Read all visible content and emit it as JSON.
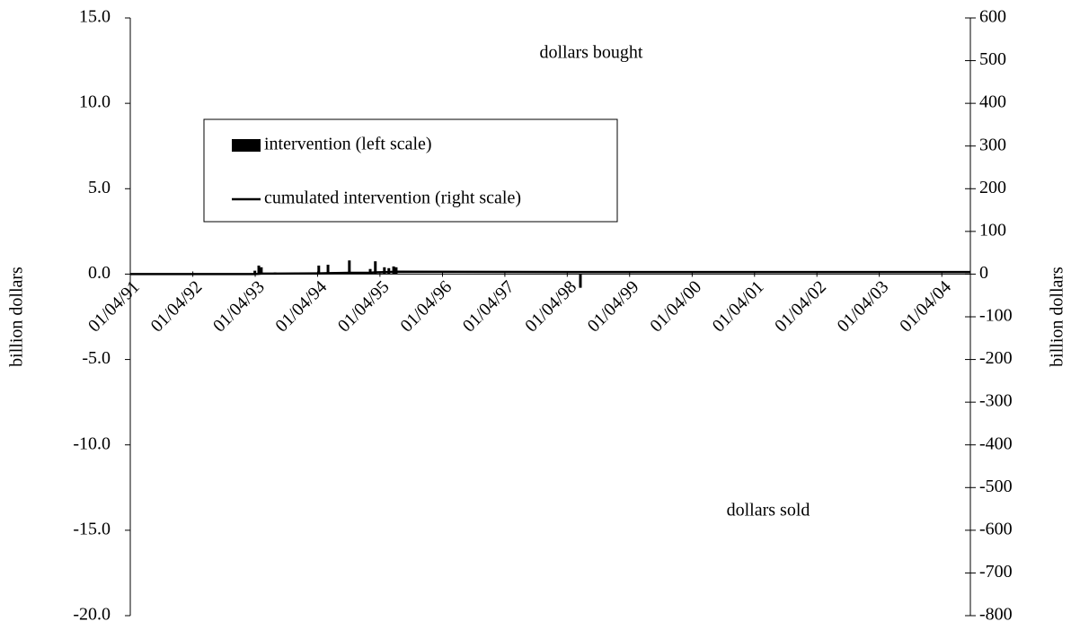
{
  "chart_data": {
    "type": "combo",
    "ylabel": "billion dollars",
    "y2label": "billion dollars",
    "annotations": [
      "dollars bought",
      "dollars sold"
    ],
    "xlim": [
      "01/04/91",
      "15/09/04"
    ],
    "xticks": [
      "01/04/91",
      "01/04/92",
      "01/04/93",
      "01/04/94",
      "01/04/95",
      "01/04/96",
      "01/04/97",
      "01/04/98",
      "01/04/99",
      "01/04/00",
      "01/04/01",
      "01/04/02",
      "01/04/03",
      "01/04/04"
    ],
    "ylim": [
      -20,
      15
    ],
    "yticks": [
      {
        "value": -20,
        "label": "-20.0"
      },
      {
        "value": -15,
        "label": "-15.0"
      },
      {
        "value": -10,
        "label": "-10.0"
      },
      {
        "value": -5,
        "label": "-5.0"
      },
      {
        "value": 0,
        "label": "0.0"
      },
      {
        "value": 5,
        "label": "5.0"
      },
      {
        "value": 10,
        "label": "10.0"
      },
      {
        "value": 15,
        "label": "15.0"
      }
    ],
    "y2lim": [
      -800,
      600
    ],
    "y2ticks": [
      -800,
      -700,
      -600,
      -500,
      -400,
      -300,
      -200,
      -100,
      0,
      100,
      200,
      300,
      400,
      500,
      600
    ],
    "legend": "upper-left",
    "series": [
      {
        "name": "intervention (left scale)",
        "type": "bar",
        "color": "#000000",
        "x": [
          "30/03/93",
          "22/04/93",
          "07/05/93",
          "26/07/93",
          "08/04/94",
          "01/06/94",
          "04/10/94",
          "03/02/95",
          "05/03/95",
          "27/04/95",
          "23/05/95",
          "20/06/95",
          "05/07/95",
          "17/06/98"
        ],
        "values": [
          0.2,
          0.5,
          0.4,
          0.1,
          0.5,
          0.55,
          0.8,
          0.3,
          0.75,
          0.4,
          0.35,
          0.45,
          0.4,
          -0.8
        ]
      },
      {
        "name": "cumulated intervention (right scale)",
        "type": "line",
        "axis": "y2",
        "color": "#000000",
        "x": [
          "01/04/91",
          "30/03/93",
          "22/04/93",
          "07/05/93",
          "26/07/93",
          "08/04/94",
          "01/06/94",
          "04/10/94",
          "03/02/95",
          "05/03/95",
          "27/04/95",
          "23/05/95",
          "20/06/95",
          "05/07/95",
          "17/06/98",
          "15/09/04"
        ],
        "values": [
          0,
          0.2,
          0.7,
          1.1,
          1.2,
          1.7,
          2.25,
          3.05,
          3.35,
          4.1,
          4.5,
          4.85,
          5.3,
          5.7,
          4.9,
          4.9
        ]
      }
    ]
  }
}
